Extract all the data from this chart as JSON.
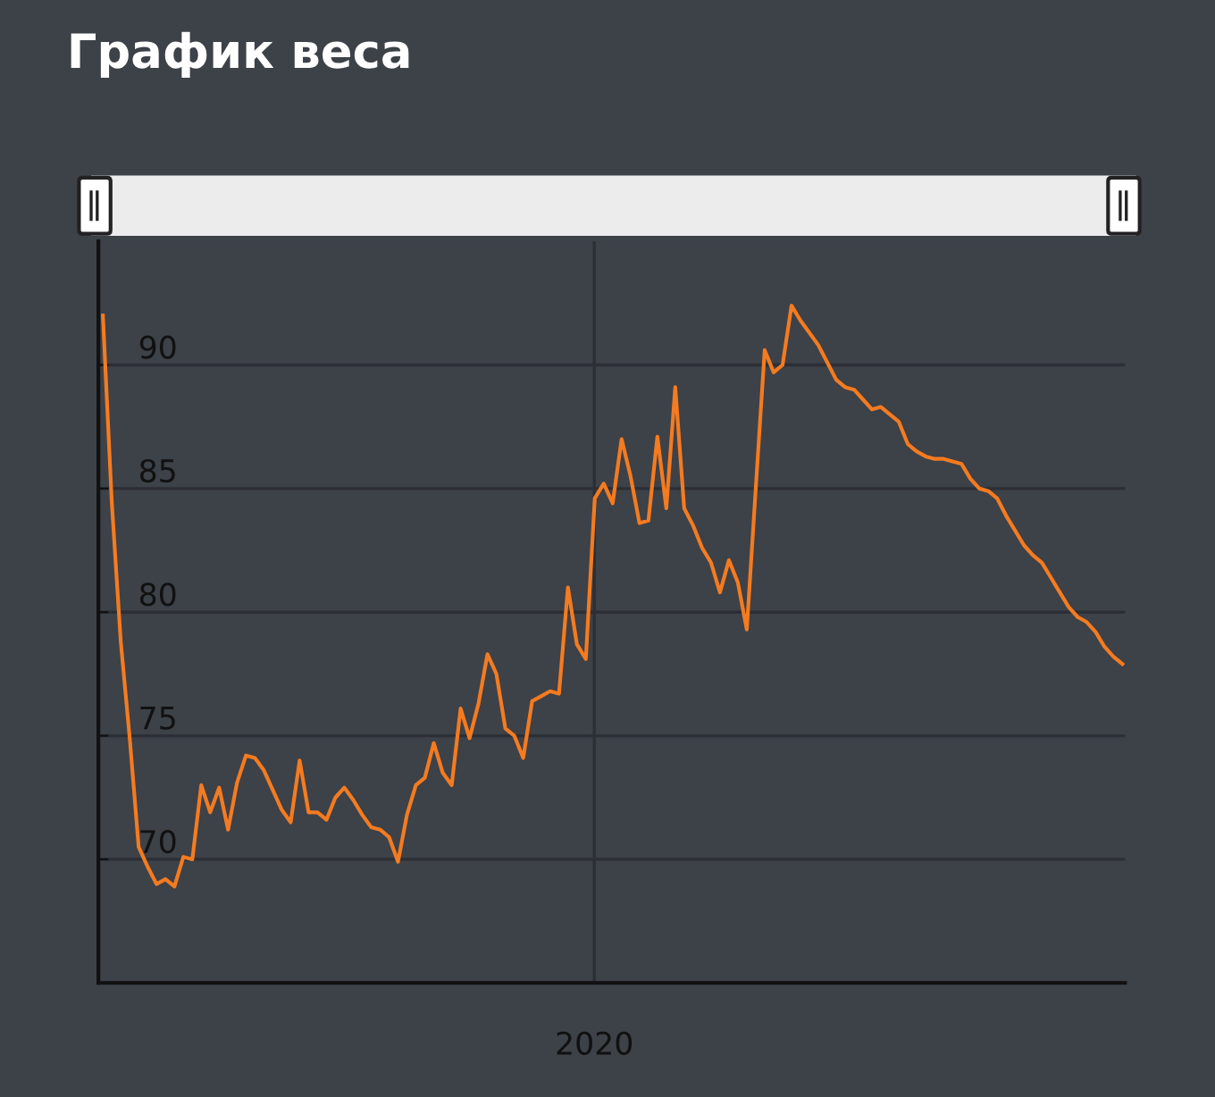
{
  "chart_data": {
    "type": "line",
    "title": "График веса",
    "categories": [
      null,
      null,
      null,
      null,
      null,
      null,
      null,
      null,
      null,
      null,
      null,
      null,
      null,
      null,
      null,
      null,
      null,
      null,
      null,
      null,
      null,
      null,
      null,
      null,
      null,
      null,
      null,
      null,
      null,
      null,
      null,
      null,
      null,
      null,
      null,
      null,
      null,
      null,
      null,
      null,
      null,
      null,
      null,
      null,
      null,
      null,
      null,
      null,
      null,
      null,
      null,
      null,
      null,
      null,
      null,
      null,
      null,
      null,
      null,
      null,
      null,
      null,
      null,
      null,
      null,
      null,
      null,
      null,
      null,
      null,
      null,
      null,
      null,
      null,
      null,
      null,
      null,
      null,
      null,
      null,
      null,
      null,
      null,
      null,
      null,
      null,
      null,
      null,
      null,
      null,
      null,
      null,
      null,
      null,
      null,
      null,
      null,
      null,
      null,
      null,
      null,
      null,
      null,
      null,
      null,
      null,
      null,
      null,
      null,
      null,
      null,
      null,
      null,
      null,
      null
    ],
    "series": [
      {
        "color": "#f47b20",
        "values": [
          92.0,
          84.4,
          78.8,
          74.9,
          70.5,
          69.7,
          69.0,
          69.2,
          68.9,
          70.1,
          70.0,
          73.0,
          71.9,
          72.9,
          71.2,
          73.1,
          74.2,
          74.1,
          73.6,
          72.8,
          72.0,
          71.5,
          74.0,
          71.9,
          71.9,
          71.6,
          72.5,
          72.9,
          72.4,
          71.8,
          71.3,
          71.2,
          70.9,
          69.9,
          71.8,
          73.0,
          73.3,
          74.7,
          73.5,
          73.0,
          76.1,
          74.9,
          76.3,
          78.3,
          77.5,
          75.3,
          75.0,
          74.1,
          76.4,
          76.6,
          76.8,
          76.7,
          81.0,
          78.7,
          78.1,
          84.6,
          85.2,
          84.4,
          87.0,
          85.5,
          83.6,
          83.7,
          87.1,
          84.2,
          89.1,
          84.2,
          83.5,
          82.6,
          82.0,
          80.8,
          82.1,
          81.2,
          79.3,
          85.0,
          90.6,
          89.7,
          90.0,
          92.4,
          91.8,
          91.3,
          90.8,
          90.1,
          89.4,
          89.1,
          89.0,
          88.6,
          88.2,
          88.3,
          88.0,
          87.7,
          86.8,
          86.5,
          86.3,
          86.2,
          86.2,
          86.1,
          86.0,
          85.4,
          85.0,
          84.9,
          84.6,
          83.9,
          83.3,
          82.7,
          82.3,
          82.0,
          81.4,
          80.8,
          80.2,
          79.8,
          79.6,
          79.2,
          78.6,
          78.2,
          77.9
        ]
      }
    ],
    "annotations": [
      "2020"
    ],
    "ylim": [
      65,
      95
    ],
    "yticks": [
      70,
      75,
      80,
      85,
      90
    ],
    "tick_labels": "y",
    "grid": "y",
    "legend": false,
    "marker": "none",
    "line_style": "solid"
  }
}
